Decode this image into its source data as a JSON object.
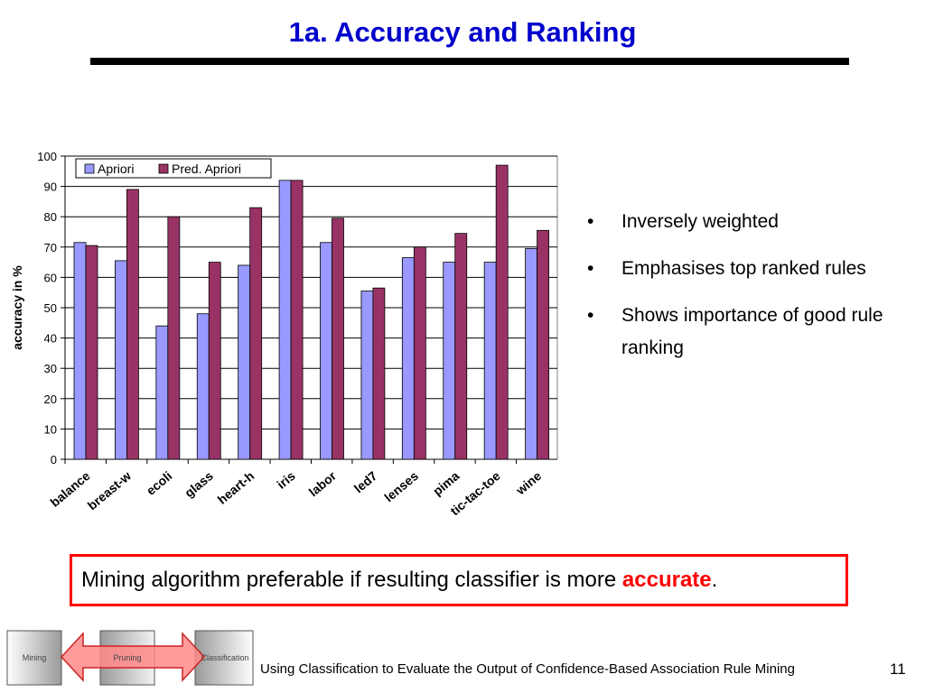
{
  "slide": {
    "title": "1a. Accuracy and Ranking",
    "page_number": "11",
    "footer": "Using Classification to Evaluate the Output of Confidence-Based Association Rule Mining"
  },
  "bullets": [
    "Inversely weighted",
    "Emphasises top ranked rules",
    "Shows importance of good rule ranking"
  ],
  "callout": {
    "prefix": "Mining algorithm preferable if resulting classifier is more ",
    "emphasis": "accurate",
    "suffix": "."
  },
  "flow": {
    "labels": [
      "Mining",
      "Pruning",
      "Classification"
    ]
  },
  "colors": {
    "title": "#0000cc",
    "apriori": "#9999ff",
    "pred_apriori": "#993366",
    "callout_border": "#ff0000",
    "accent": "#ff0000"
  },
  "chart_data": {
    "type": "bar",
    "categories": [
      "balance",
      "breast-w",
      "ecoli",
      "glass",
      "heart-h",
      "iris",
      "labor",
      "led7",
      "lenses",
      "pima",
      "tic-tac-toe",
      "wine"
    ],
    "series": [
      {
        "name": "Apriori",
        "values": [
          71.5,
          65.5,
          44,
          48,
          64,
          92,
          71.5,
          55.5,
          66.5,
          65,
          65,
          69.5
        ]
      },
      {
        "name": "Pred. Apriori",
        "values": [
          70.5,
          89,
          80,
          65,
          83,
          92,
          79.5,
          56.5,
          70,
          74.5,
          97,
          75.5
        ]
      }
    ],
    "ylabel": "accuracy in %",
    "xlabel": "",
    "ylim": [
      0,
      100
    ],
    "yticks": [
      0,
      10,
      20,
      30,
      40,
      50,
      60,
      70,
      80,
      90,
      100
    ],
    "grid": true,
    "legend": "top-left"
  }
}
